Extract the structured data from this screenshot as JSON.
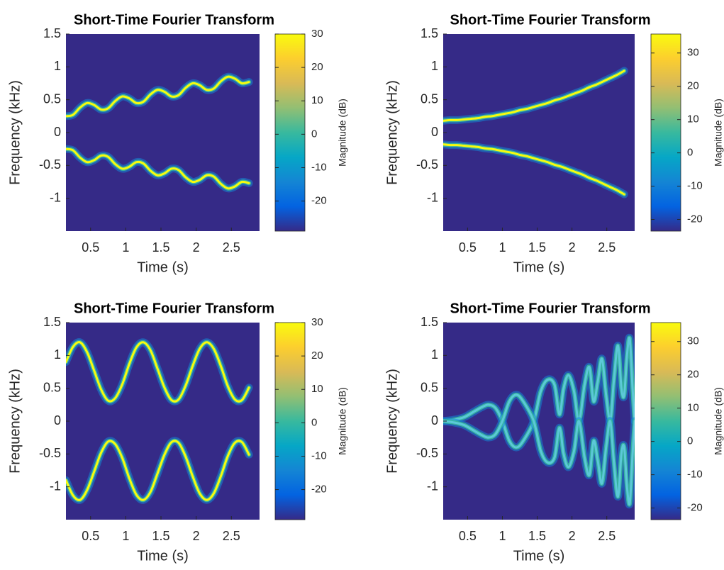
{
  "chart_data": [
    {
      "type": "spectrogram",
      "title": "Short-Time Fourier Transform",
      "xlabel": "Time (s)",
      "ylabel": "Frequency (kHz)",
      "colorbar_label": "Magnitude (dB)",
      "xlim": [
        0.15,
        2.9
      ],
      "ylim": [
        -1.5,
        1.5
      ],
      "xticks": [
        0.5,
        1,
        1.5,
        2,
        2.5
      ],
      "yticks": [
        -1,
        -0.5,
        0,
        0.5,
        1,
        1.5
      ],
      "clim": [
        -29,
        30
      ],
      "cticks": [
        -20,
        -10,
        0,
        10,
        20,
        30
      ],
      "colormap": [
        "#352a87",
        "#0363e1",
        "#1485d4",
        "#06a7c6",
        "#38b99e",
        "#92bf73",
        "#d9ba56",
        "#fcce2e",
        "#f9fb0e"
      ],
      "x": [
        0.15,
        0.25,
        0.35,
        0.45,
        0.55,
        0.65,
        0.75,
        0.85,
        0.95,
        1.05,
        1.15,
        1.25,
        1.35,
        1.45,
        1.55,
        1.65,
        1.75,
        1.85,
        1.95,
        2.05,
        2.15,
        2.25,
        2.35,
        2.45,
        2.55,
        2.65,
        2.75
      ],
      "series": [
        {
          "color": "#f9fb0e",
          "values": [
            0.25,
            0.27,
            0.38,
            0.45,
            0.42,
            0.35,
            0.37,
            0.48,
            0.55,
            0.52,
            0.45,
            0.47,
            0.58,
            0.65,
            0.62,
            0.55,
            0.57,
            0.68,
            0.75,
            0.72,
            0.65,
            0.67,
            0.78,
            0.85,
            0.82,
            0.75,
            0.77
          ]
        },
        {
          "color": "#f9fb0e",
          "values": [
            -0.25,
            -0.27,
            -0.38,
            -0.45,
            -0.42,
            -0.35,
            -0.37,
            -0.48,
            -0.55,
            -0.52,
            -0.45,
            -0.47,
            -0.58,
            -0.65,
            -0.62,
            -0.55,
            -0.57,
            -0.68,
            -0.75,
            -0.72,
            -0.65,
            -0.67,
            -0.78,
            -0.85,
            -0.82,
            -0.75,
            -0.77
          ]
        }
      ]
    },
    {
      "type": "spectrogram",
      "title": "Short-Time Fourier Transform",
      "xlabel": "Time (s)",
      "ylabel": "Frequency (kHz)",
      "colorbar_label": "Magnitude (dB)",
      "xlim": [
        0.15,
        2.9
      ],
      "ylim": [
        -1.5,
        1.5
      ],
      "xticks": [
        0.5,
        1,
        1.5,
        2,
        2.5
      ],
      "yticks": [
        -1,
        -0.5,
        0,
        0.5,
        1,
        1.5
      ],
      "clim": [
        -23.5,
        35.7
      ],
      "cticks": [
        -20,
        -10,
        0,
        10,
        20,
        30
      ],
      "colormap": [
        "#352a87",
        "#0363e1",
        "#1485d4",
        "#06a7c6",
        "#38b99e",
        "#92bf73",
        "#d9ba56",
        "#fcce2e",
        "#f9fb0e"
      ],
      "x": [
        0.15,
        0.25,
        0.35,
        0.45,
        0.55,
        0.65,
        0.75,
        0.85,
        0.95,
        1.05,
        1.15,
        1.25,
        1.35,
        1.45,
        1.55,
        1.65,
        1.75,
        1.85,
        1.95,
        2.05,
        2.15,
        2.25,
        2.35,
        2.45,
        2.55,
        2.65,
        2.75
      ],
      "series": [
        {
          "color": "#f9fb0e",
          "values": [
            0.18,
            0.19,
            0.19,
            0.2,
            0.21,
            0.22,
            0.24,
            0.25,
            0.27,
            0.29,
            0.31,
            0.34,
            0.36,
            0.39,
            0.42,
            0.45,
            0.49,
            0.52,
            0.56,
            0.6,
            0.64,
            0.69,
            0.73,
            0.78,
            0.83,
            0.88,
            0.94
          ]
        },
        {
          "color": "#f9fb0e",
          "values": [
            -0.18,
            -0.19,
            -0.19,
            -0.2,
            -0.21,
            -0.22,
            -0.24,
            -0.25,
            -0.27,
            -0.29,
            -0.31,
            -0.34,
            -0.36,
            -0.39,
            -0.42,
            -0.45,
            -0.49,
            -0.52,
            -0.56,
            -0.6,
            -0.64,
            -0.69,
            -0.73,
            -0.78,
            -0.83,
            -0.88,
            -0.94
          ]
        }
      ]
    },
    {
      "type": "spectrogram",
      "title": "Short-Time Fourier Transform",
      "xlabel": "Time (s)",
      "ylabel": "Frequency (kHz)",
      "colorbar_label": "Magnitude (dB)",
      "xlim": [
        0.15,
        2.9
      ],
      "ylim": [
        -1.5,
        1.5
      ],
      "xticks": [
        0.5,
        1,
        1.5,
        2,
        2.5
      ],
      "yticks": [
        -1,
        -0.5,
        0,
        0.5,
        1,
        1.5
      ],
      "clim": [
        -29,
        30
      ],
      "cticks": [
        -20,
        -10,
        0,
        10,
        20,
        30
      ],
      "colormap": [
        "#352a87",
        "#0363e1",
        "#1485d4",
        "#06a7c6",
        "#38b99e",
        "#92bf73",
        "#d9ba56",
        "#fcce2e",
        "#f9fb0e"
      ],
      "x": [
        0.15,
        0.25,
        0.35,
        0.45,
        0.55,
        0.65,
        0.75,
        0.85,
        0.95,
        1.05,
        1.15,
        1.25,
        1.35,
        1.45,
        1.55,
        1.65,
        1.75,
        1.85,
        1.95,
        2.05,
        2.15,
        2.25,
        2.35,
        2.45,
        2.55,
        2.65,
        2.75
      ],
      "series": [
        {
          "color": "#f9fb0e",
          "values": [
            0.9,
            1.13,
            1.2,
            1.05,
            0.77,
            0.48,
            0.31,
            0.35,
            0.56,
            0.87,
            1.12,
            1.2,
            1.08,
            0.8,
            0.51,
            0.32,
            0.33,
            0.54,
            0.84,
            1.1,
            1.2,
            1.1,
            0.84,
            0.53,
            0.33,
            0.32,
            0.51
          ]
        },
        {
          "color": "#f9fb0e",
          "values": [
            -0.9,
            -1.13,
            -1.2,
            -1.05,
            -0.77,
            -0.48,
            -0.31,
            -0.35,
            -0.56,
            -0.87,
            -1.12,
            -1.2,
            -1.08,
            -0.8,
            -0.51,
            -0.32,
            -0.33,
            -0.54,
            -0.84,
            -1.1,
            -1.2,
            -1.1,
            -0.84,
            -0.53,
            -0.33,
            -0.32,
            -0.51
          ]
        }
      ]
    },
    {
      "type": "spectrogram",
      "title": "Short-Time Fourier Transform",
      "xlabel": "Time (s)",
      "ylabel": "Frequency (kHz)",
      "colorbar_label": "Magnitude (dB)",
      "xlim": [
        0.15,
        2.9
      ],
      "ylim": [
        -1.5,
        1.5
      ],
      "xticks": [
        0.5,
        1,
        1.5,
        2,
        2.5
      ],
      "yticks": [
        -1,
        -0.5,
        0,
        0.5,
        1,
        1.5
      ],
      "clim": [
        -23.5,
        35.7
      ],
      "cticks": [
        -20,
        -10,
        0,
        10,
        20,
        30
      ],
      "colormap": [
        "#352a87",
        "#0363e1",
        "#1485d4",
        "#06a7c6",
        "#38b99e",
        "#92bf73",
        "#d9ba56",
        "#fcce2e",
        "#f9fb0e"
      ],
      "x": [
        0.15,
        0.3,
        0.45,
        0.6,
        0.7,
        0.8,
        0.9,
        1.0,
        1.1,
        1.2,
        1.3,
        1.45,
        1.55,
        1.65,
        1.75,
        1.82,
        1.88,
        1.95,
        2.03,
        2.1,
        2.18,
        2.25,
        2.31,
        2.37,
        2.43,
        2.49,
        2.55,
        2.6,
        2.66,
        2.71,
        2.75,
        2.79,
        2.83,
        2.87,
        2.9
      ],
      "series": [
        {
          "color": "#5cc8d8",
          "values": [
            0,
            0.02,
            0.06,
            0.15,
            0.21,
            0.25,
            0.2,
            0,
            -0.3,
            -0.4,
            -0.3,
            0,
            0.45,
            0.63,
            0.55,
            0.1,
            0.5,
            0.7,
            0.45,
            0,
            0.55,
            0.82,
            0.3,
            0.6,
            0.95,
            0.4,
            0,
            0.6,
            1.15,
            0.5,
            0.4,
            1.0,
            1.25,
            0.5,
            0
          ]
        },
        {
          "color": "#5cc8d8",
          "values": [
            0,
            -0.02,
            -0.06,
            -0.15,
            -0.21,
            -0.25,
            -0.2,
            0,
            0.3,
            0.4,
            0.3,
            0,
            -0.45,
            -0.63,
            -0.55,
            -0.1,
            -0.5,
            -0.7,
            -0.45,
            0,
            -0.55,
            -0.82,
            -0.3,
            -0.6,
            -0.95,
            -0.4,
            0,
            -0.6,
            -1.15,
            -0.5,
            -0.4,
            -1.0,
            -1.25,
            -0.5,
            0
          ]
        }
      ]
    }
  ]
}
